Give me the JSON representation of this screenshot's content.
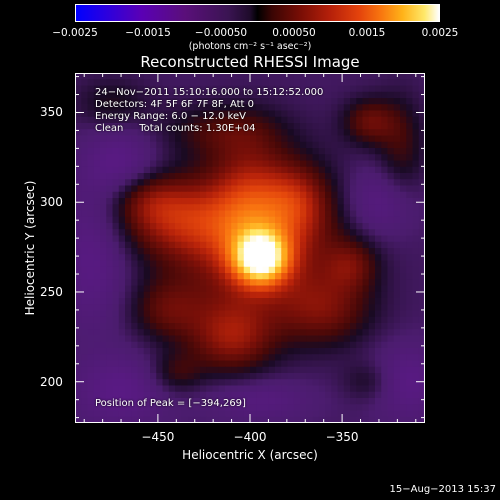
{
  "colorbar": {
    "tick_labels": [
      "−0.0025",
      "−0.0015",
      "−0.00050",
      "0.00050",
      "0.0015",
      "0.0025"
    ],
    "unit_label": "(photons cm⁻² s⁻¹ asec⁻²)"
  },
  "info": {
    "time_range": "24−Nov−2011 15:10:16.000 to 15:12:52.000",
    "detectors": "Detectors: 4F 5F 6F 7F 8F, Att 0",
    "energy": "Energy Range: 6.0 − 12.0 keV",
    "clean": "Clean     Total counts: 1.30E+04",
    "peak": "Position of Peak = [−394,269]"
  },
  "footer": {
    "date": "15−Aug−2013 15:37"
  },
  "chart_data": {
    "type": "heatmap",
    "title": "Reconstructed RHESSI Image",
    "xlabel": "Heliocentric X (arcsec)",
    "ylabel": "Heliocentric Y (arcsec)",
    "xlim": [
      -495,
      -305
    ],
    "ylim": [
      177,
      372
    ],
    "x_ticks": [
      -450,
      -400,
      -350
    ],
    "x_tick_labels": [
      "−450",
      "−400",
      "−350"
    ],
    "y_ticks": [
      200,
      250,
      300,
      350
    ],
    "y_tick_labels": [
      "200",
      "250",
      "300",
      "350"
    ],
    "colorbar_range": [
      -0.0025,
      0.0025
    ],
    "peak_position": [
      -394,
      269
    ],
    "blobs": [
      {
        "x": -394,
        "y": 269,
        "sx": 10,
        "sy": 10,
        "amp": 0.0022
      },
      {
        "x": -398,
        "y": 280,
        "sx": 32,
        "sy": 28,
        "amp": 0.001
      },
      {
        "x": -400,
        "y": 300,
        "sx": 14,
        "sy": 25,
        "amp": 0.0006
      },
      {
        "x": -375,
        "y": 300,
        "sx": 12,
        "sy": 14,
        "amp": 0.0006
      },
      {
        "x": -440,
        "y": 290,
        "sx": 22,
        "sy": 14,
        "amp": 0.0007
      },
      {
        "x": -455,
        "y": 302,
        "sx": 14,
        "sy": 10,
        "amp": 0.0004
      },
      {
        "x": -410,
        "y": 225,
        "sx": 16,
        "sy": 14,
        "amp": 0.0008
      },
      {
        "x": -445,
        "y": 240,
        "sx": 14,
        "sy": 12,
        "amp": 0.0005
      },
      {
        "x": -360,
        "y": 240,
        "sx": 18,
        "sy": 14,
        "amp": 0.0006
      },
      {
        "x": -345,
        "y": 265,
        "sx": 10,
        "sy": 10,
        "amp": 0.0005
      },
      {
        "x": -415,
        "y": 340,
        "sx": 22,
        "sy": 10,
        "amp": 0.0004
      },
      {
        "x": -335,
        "y": 345,
        "sx": 10,
        "sy": 9,
        "amp": 0.0006
      },
      {
        "x": -318,
        "y": 330,
        "sx": 9,
        "sy": 20,
        "amp": 0.0004
      },
      {
        "x": -475,
        "y": 355,
        "sx": 14,
        "sy": 10,
        "amp": 0.0003
      },
      {
        "x": -440,
        "y": 205,
        "sx": 10,
        "sy": 8,
        "amp": 0.0004
      },
      {
        "x": -335,
        "y": 200,
        "sx": 10,
        "sy": 8,
        "amp": 0.0003
      },
      {
        "x": -470,
        "y": 322,
        "sx": 14,
        "sy": 14,
        "amp": -0.0004
      },
      {
        "x": -485,
        "y": 270,
        "sx": 14,
        "sy": 28,
        "amp": -0.0004
      },
      {
        "x": -470,
        "y": 195,
        "sx": 18,
        "sy": 14,
        "amp": -0.0004
      },
      {
        "x": -330,
        "y": 300,
        "sx": 14,
        "sy": 14,
        "amp": -0.0004
      },
      {
        "x": -315,
        "y": 200,
        "sx": 14,
        "sy": 14,
        "amp": -0.0004
      },
      {
        "x": -395,
        "y": 190,
        "sx": 20,
        "sy": 8,
        "amp": -0.0003
      }
    ]
  }
}
